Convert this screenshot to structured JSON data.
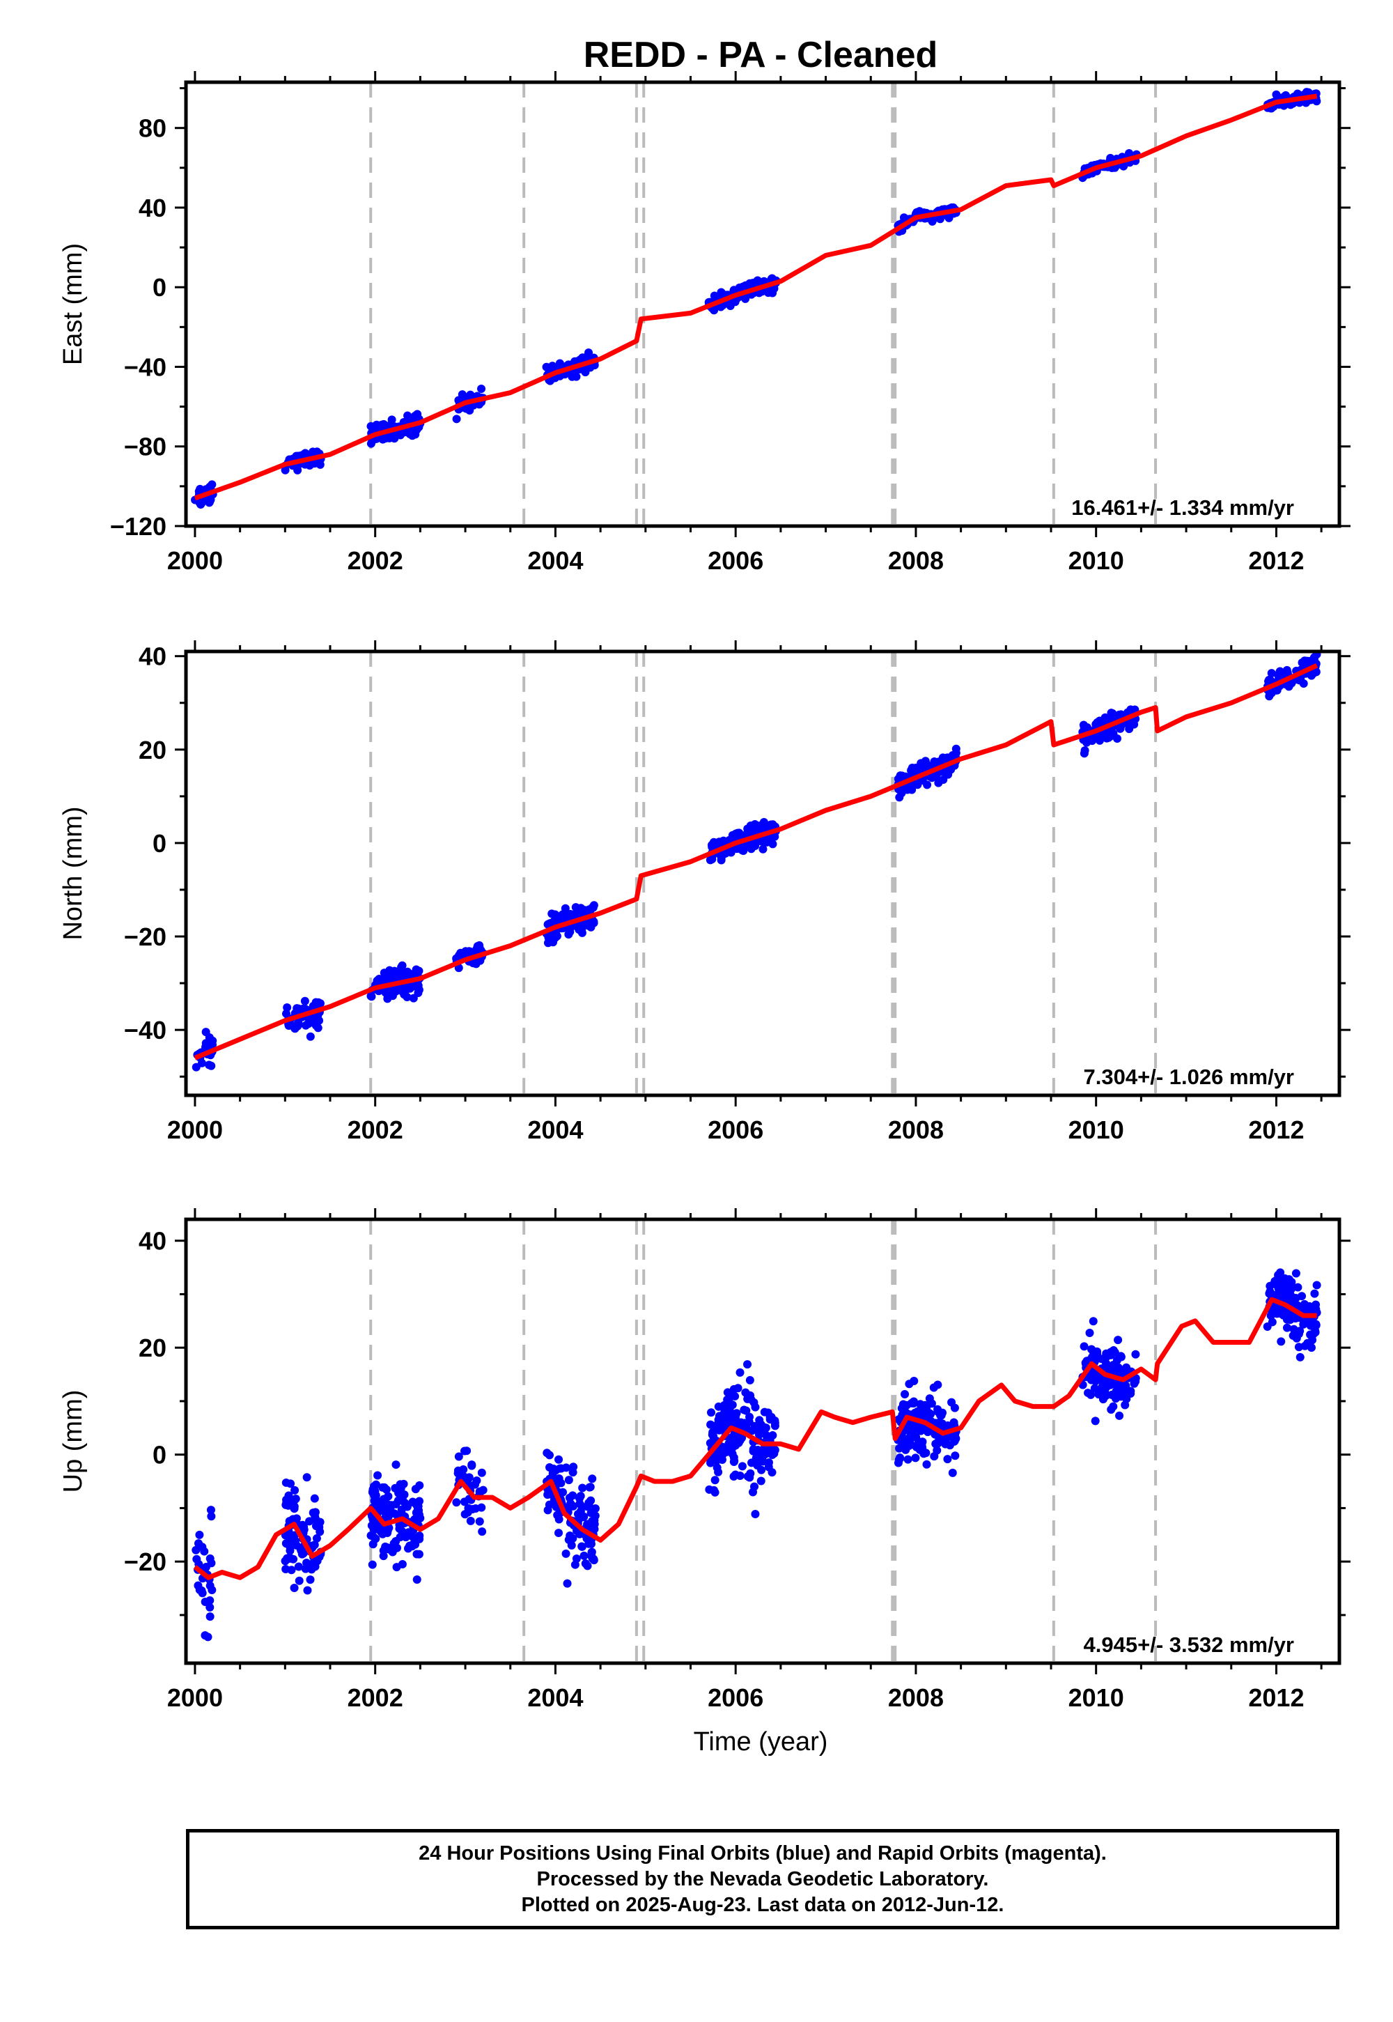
{
  "title": "REDD  - PA - Cleaned",
  "xlabel": "Time (year)",
  "colors": {
    "data": "#0000ff",
    "model": "#ff0000",
    "breaks": "#bbbbbb",
    "axis": "#000000"
  },
  "footer": {
    "line1": "24 Hour Positions Using Final Orbits (blue) and Rapid Orbits (magenta).",
    "line2": "Processed by the Nevada Geodetic Laboratory.",
    "line3": "Plotted on 2025-Aug-23. Last data on 2012-Jun-12."
  },
  "chart_data": [
    {
      "type": "scatter",
      "ylabel": "East (mm)",
      "rate_label": "16.461+/- 1.334 mm/yr",
      "xlim": [
        1999.9,
        2012.7
      ],
      "ylim": [
        -120,
        103
      ],
      "xticks": [
        2000,
        2002,
        2004,
        2006,
        2008,
        2010,
        2012
      ],
      "yticks": [
        -120,
        -80,
        -40,
        0,
        40,
        80
      ],
      "grid": false,
      "breaks": [
        2001.95,
        2003.65,
        2004.9,
        2004.98,
        2007.74,
        2007.77,
        2009.53,
        2010.66
      ],
      "series": [
        {
          "values_model_x": [
            2000.0,
            2000.5,
            2001.0,
            2001.5,
            2002.0,
            2002.5,
            2003.0,
            2003.5,
            2004.0,
            2004.5,
            2004.9,
            2004.95,
            2005.5,
            2006.0,
            2006.5,
            2007.0,
            2007.5,
            2008.0,
            2008.5,
            2009.0,
            2009.5,
            2009.53,
            2010.0,
            2010.5,
            2011.0,
            2011.5,
            2012.0,
            2012.45
          ],
          "values_model_y": [
            -106,
            -98,
            -89,
            -84,
            -74,
            -68,
            -58,
            -53,
            -43,
            -36,
            -27,
            -16,
            -13,
            -4,
            3,
            16,
            21,
            35,
            39,
            51,
            54,
            51,
            60,
            66,
            76,
            84,
            93,
            96
          ]
        },
        {
          "clusters": [
            {
              "t0": 2000.0,
              "t1": 2000.2,
              "y0": -106,
              "slope": 16.4,
              "spread": 5,
              "n": 25
            },
            {
              "t0": 2001.0,
              "t1": 2001.4,
              "y0": -89,
              "slope": 16.4,
              "spread": 3,
              "n": 60
            },
            {
              "t0": 2001.95,
              "t1": 2002.5,
              "y0": -74,
              "slope": 16.4,
              "spread": 4,
              "n": 110
            },
            {
              "t0": 2002.9,
              "t1": 2003.2,
              "y0": -58,
              "slope": 16.4,
              "spread": 3,
              "n": 40
            },
            {
              "t0": 2003.9,
              "t1": 2004.45,
              "y0": -41,
              "slope": 16.4,
              "spread": 3,
              "n": 100
            },
            {
              "t0": 2005.7,
              "t1": 2006.45,
              "y0": -3,
              "slope": 16.4,
              "spread": 3,
              "n": 140
            },
            {
              "t0": 2007.8,
              "t1": 2008.45,
              "y0": 35,
              "slope": 16.4,
              "spread": 2,
              "n": 120
            },
            {
              "t0": 2009.85,
              "t1": 2010.45,
              "y0": 62,
              "slope": 16.4,
              "spread": 2,
              "n": 110
            },
            {
              "t0": 2011.9,
              "t1": 2012.45,
              "y0": 93,
              "slope": 16.4,
              "spread": 2,
              "n": 100
            }
          ]
        }
      ]
    },
    {
      "type": "scatter",
      "ylabel": "North (mm)",
      "rate_label": "7.304+/- 1.026 mm/yr",
      "xlim": [
        1999.9,
        2012.7
      ],
      "ylim": [
        -54,
        41
      ],
      "xticks": [
        2000,
        2002,
        2004,
        2006,
        2008,
        2010,
        2012
      ],
      "yticks": [
        -40,
        -20,
        0,
        20,
        40
      ],
      "grid": false,
      "breaks": [
        2001.95,
        2003.65,
        2004.9,
        2004.98,
        2007.74,
        2007.77,
        2009.53,
        2010.66
      ],
      "series": [
        {
          "values_model_x": [
            2000.0,
            2000.5,
            2001.0,
            2001.5,
            2002.0,
            2002.5,
            2003.0,
            2003.5,
            2004.0,
            2004.5,
            2004.9,
            2004.95,
            2005.5,
            2006.0,
            2006.5,
            2007.0,
            2007.5,
            2008.0,
            2008.5,
            2009.0,
            2009.5,
            2009.53,
            2010.0,
            2010.5,
            2010.66,
            2010.68,
            2011.0,
            2011.5,
            2012.0,
            2012.45
          ],
          "values_model_y": [
            -46,
            -42,
            -38,
            -35,
            -31,
            -29,
            -25,
            -22,
            -18,
            -15,
            -12,
            -7,
            -4,
            0,
            3,
            7,
            10,
            14,
            18,
            21,
            26,
            21,
            24,
            28,
            29,
            24,
            27,
            30,
            34,
            38
          ]
        },
        {
          "clusters": [
            {
              "t0": 2000.0,
              "t1": 2000.2,
              "y0": -45,
              "slope": 7.3,
              "spread": 3,
              "n": 25
            },
            {
              "t0": 2001.0,
              "t1": 2001.4,
              "y0": -38,
              "slope": 7.3,
              "spread": 3,
              "n": 60
            },
            {
              "t0": 2001.95,
              "t1": 2002.5,
              "y0": -32,
              "slope": 7.3,
              "spread": 2.5,
              "n": 110
            },
            {
              "t0": 2002.9,
              "t1": 2003.2,
              "y0": -25,
              "slope": 7.3,
              "spread": 2,
              "n": 40
            },
            {
              "t0": 2003.9,
              "t1": 2004.45,
              "y0": -18,
              "slope": 7.3,
              "spread": 2.5,
              "n": 100
            },
            {
              "t0": 2005.7,
              "t1": 2006.45,
              "y0": -1,
              "slope": 7.3,
              "spread": 2,
              "n": 140
            },
            {
              "t0": 2007.8,
              "t1": 2008.45,
              "y0": 14,
              "slope": 7.3,
              "spread": 2,
              "n": 120
            },
            {
              "t0": 2009.85,
              "t1": 2010.45,
              "y0": 23,
              "slope": 7.3,
              "spread": 2,
              "n": 110
            },
            {
              "t0": 2011.9,
              "t1": 2012.45,
              "y0": 34,
              "slope": 7.3,
              "spread": 2,
              "n": 100
            }
          ]
        }
      ]
    },
    {
      "type": "scatter",
      "ylabel": "Up (mm)",
      "rate_label": "4.945+/- 3.532 mm/yr",
      "xlim": [
        1999.9,
        2012.7
      ],
      "ylim": [
        -39,
        44
      ],
      "xticks": [
        2000,
        2002,
        2004,
        2006,
        2008,
        2010,
        2012
      ],
      "yticks": [
        -20,
        0,
        20,
        40
      ],
      "grid": false,
      "breaks": [
        2001.95,
        2003.65,
        2004.9,
        2004.98,
        2007.74,
        2007.77,
        2009.53,
        2010.66
      ],
      "series": [
        {
          "values_model_x": [
            2000.0,
            2000.15,
            2000.3,
            2000.5,
            2000.7,
            2000.9,
            2001.1,
            2001.3,
            2001.5,
            2001.7,
            2001.95,
            2002.1,
            2002.3,
            2002.5,
            2002.7,
            2002.95,
            2003.1,
            2003.3,
            2003.5,
            2003.7,
            2003.95,
            2004.1,
            2004.3,
            2004.5,
            2004.7,
            2004.9,
            2004.95,
            2005.1,
            2005.3,
            2005.5,
            2005.7,
            2005.95,
            2006.1,
            2006.3,
            2006.5,
            2006.7,
            2006.95,
            2007.1,
            2007.3,
            2007.5,
            2007.74,
            2007.77,
            2007.9,
            2008.1,
            2008.3,
            2008.5,
            2008.7,
            2008.95,
            2009.1,
            2009.3,
            2009.53,
            2009.7,
            2009.95,
            2010.1,
            2010.3,
            2010.5,
            2010.66,
            2010.68,
            2010.95,
            2011.1,
            2011.3,
            2011.5,
            2011.7,
            2011.95,
            2012.1,
            2012.3,
            2012.45
          ],
          "values_model_y": [
            -21,
            -23,
            -22,
            -23,
            -21,
            -15,
            -13,
            -19,
            -17,
            -14,
            -10,
            -13,
            -12,
            -14,
            -12,
            -5,
            -8,
            -8,
            -10,
            -8,
            -5,
            -11,
            -14,
            -16,
            -13,
            -6,
            -4,
            -5,
            -5,
            -4,
            0,
            5,
            4,
            2,
            2,
            1,
            8,
            7,
            6,
            7,
            8,
            3,
            7,
            6,
            4,
            5,
            10,
            13,
            10,
            9,
            9,
            11,
            17,
            15,
            14,
            16,
            14,
            17,
            24,
            25,
            21,
            21,
            21,
            29,
            28,
            26,
            26
          ]
        },
        {
          "clusters": [
            {
              "t0": 2000.0,
              "t1": 2000.2,
              "y0": -22,
              "slope": 0,
              "spread": 8,
              "n": 30
            },
            {
              "t0": 2001.0,
              "t1": 2001.4,
              "y0": -17,
              "slope": 0,
              "spread": 8,
              "n": 90
            },
            {
              "t0": 2001.95,
              "t1": 2002.5,
              "y0": -12,
              "slope": 0,
              "spread": 7,
              "n": 150
            },
            {
              "t0": 2002.9,
              "t1": 2003.2,
              "y0": -6,
              "slope": 0,
              "spread": 6,
              "n": 40
            },
            {
              "t0": 2003.9,
              "t1": 2004.45,
              "y0": -8,
              "slope": 0,
              "spread": 7,
              "n": 130
            },
            {
              "t0": 2005.7,
              "t1": 2006.45,
              "y0": 1,
              "slope": 0,
              "spread": 7,
              "n": 180
            },
            {
              "t0": 2007.8,
              "t1": 2008.45,
              "y0": 4,
              "slope": 0,
              "spread": 5,
              "n": 160
            },
            {
              "t0": 2009.85,
              "t1": 2010.45,
              "y0": 16,
              "slope": 0,
              "spread": 5,
              "n": 130
            },
            {
              "t0": 2011.9,
              "t1": 2012.45,
              "y0": 27,
              "slope": 0,
              "spread": 4.5,
              "n": 140
            }
          ]
        }
      ]
    }
  ]
}
